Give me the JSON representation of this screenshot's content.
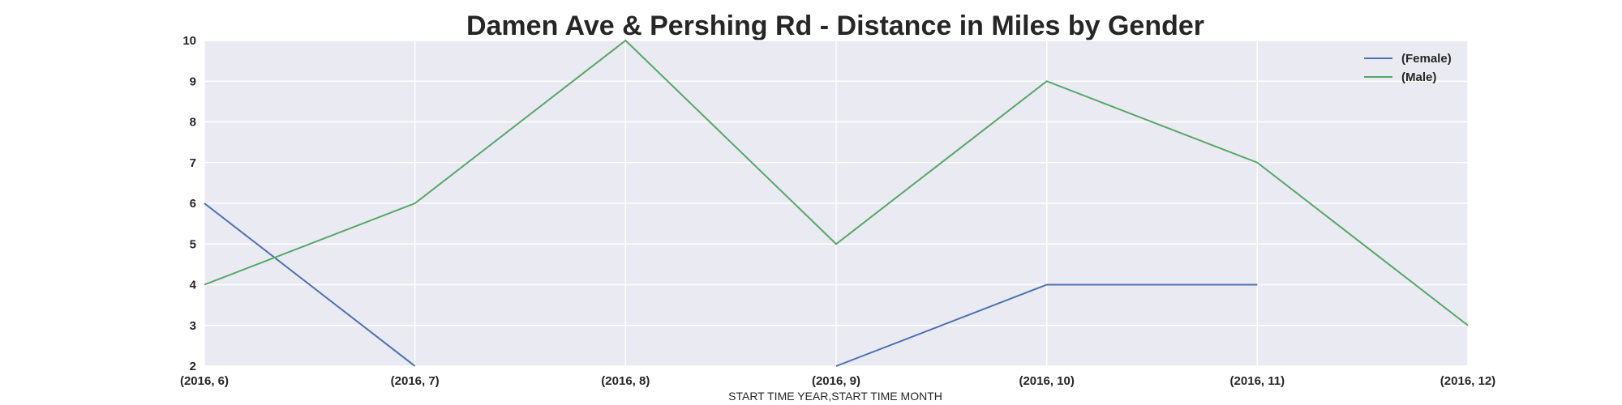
{
  "chart_data": {
    "type": "line",
    "title": "Damen Ave & Pershing Rd - Distance in Miles by Gender",
    "xlabel": "START TIME YEAR,START TIME MONTH",
    "ylabel": "",
    "categories": [
      "(2016, 6)",
      "(2016, 7)",
      "(2016, 8)",
      "(2016, 9)",
      "(2016, 10)",
      "(2016, 11)",
      "(2016, 12)"
    ],
    "yticks": [
      "2",
      "3",
      "4",
      "5",
      "6",
      "7",
      "8",
      "9",
      "10"
    ],
    "ylim": [
      2,
      10
    ],
    "grid": true,
    "legend_position": "top-right",
    "series": [
      {
        "name": "(Female)",
        "color": "#4c72b0",
        "values": [
          6,
          2,
          null,
          2,
          4,
          4,
          null
        ]
      },
      {
        "name": "(Male)",
        "color": "#55a868",
        "values": [
          4,
          6,
          10,
          5,
          9,
          7,
          3
        ]
      }
    ],
    "background_color": "#eaeaf2",
    "grid_color": "#ffffff"
  }
}
